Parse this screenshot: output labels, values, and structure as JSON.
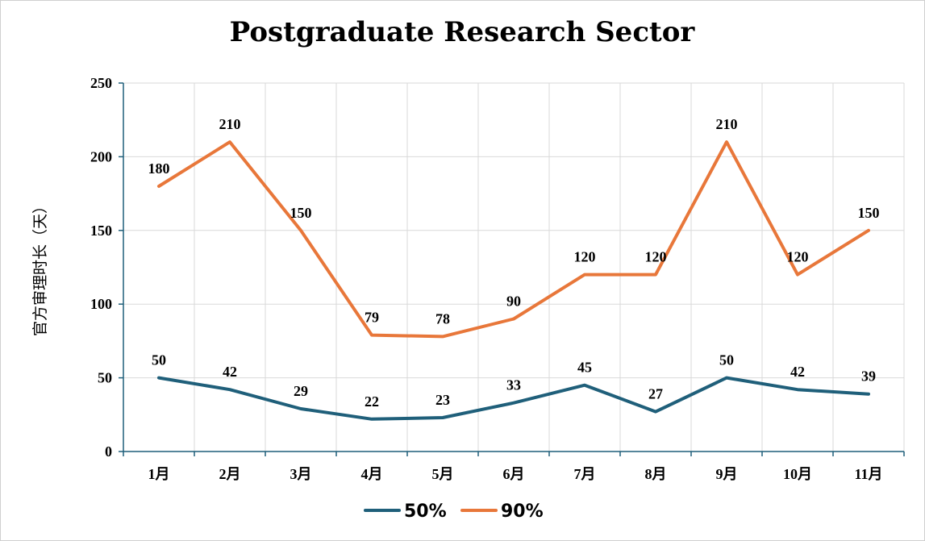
{
  "chart_data": {
    "type": "line",
    "title": "Postgraduate Research Sector",
    "xlabel": "",
    "ylabel": "官方审理时长（天）",
    "categories": [
      "1月",
      "2月",
      "3月",
      "4月",
      "5月",
      "6月",
      "7月",
      "8月",
      "9月",
      "10月",
      "11月"
    ],
    "ylim": [
      0,
      250
    ],
    "yticks": [
      0,
      50,
      100,
      150,
      200,
      250
    ],
    "grid": true,
    "legend_position": "bottom",
    "series": [
      {
        "name": "50%",
        "color": "#1f5f7a",
        "values": [
          50,
          42,
          29,
          22,
          23,
          33,
          45,
          27,
          50,
          42,
          39
        ]
      },
      {
        "name": "90%",
        "color": "#e8773a",
        "values": [
          180,
          210,
          150,
          79,
          78,
          90,
          120,
          120,
          210,
          120,
          150
        ]
      }
    ]
  }
}
